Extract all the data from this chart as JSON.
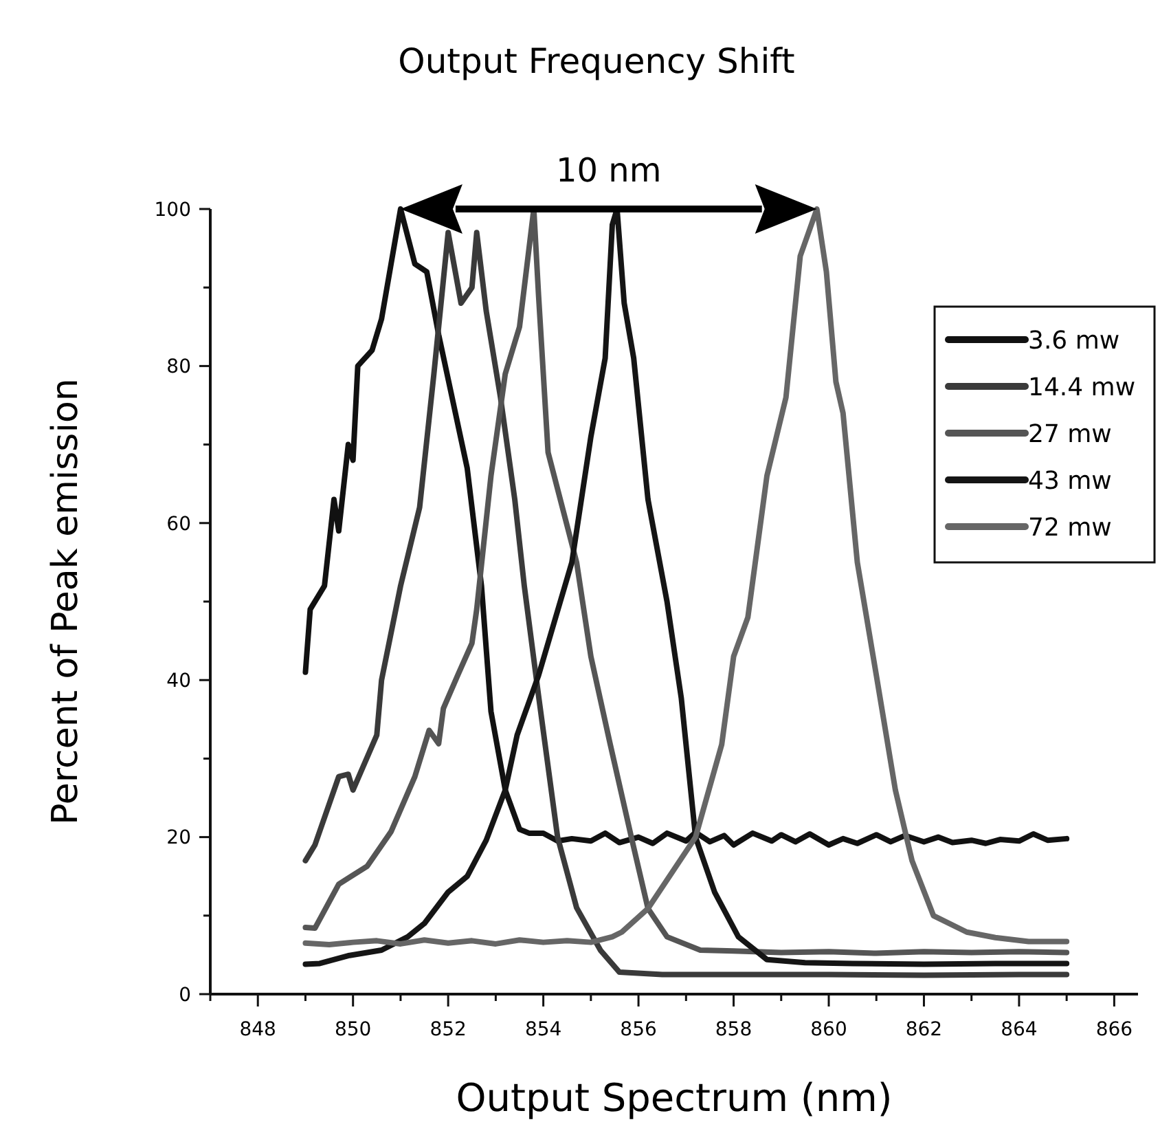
{
  "chart_data": {
    "type": "line",
    "title": "Output Frequency Shift",
    "xlabel": "Output Spectrum (nm)",
    "ylabel": "Percent of Peak emission",
    "xlim": [
      847,
      866.5
    ],
    "ylim": [
      0,
      100
    ],
    "xticks": [
      {
        "value": 847,
        "label": null
      },
      848,
      {
        "value": 849,
        "label": null
      },
      850,
      {
        "value": 851,
        "label": null
      },
      852,
      {
        "value": 853,
        "label": null
      },
      854,
      {
        "value": 855,
        "label": null
      },
      856,
      {
        "value": 857,
        "label": null
      },
      858,
      {
        "value": 859,
        "label": null
      },
      860,
      {
        "value": 861,
        "label": null
      },
      862,
      {
        "value": 863,
        "label": null
      },
      864,
      {
        "value": 865,
        "label": null
      },
      866
    ],
    "yticks": [
      0,
      {
        "value": 10,
        "label": null
      },
      20,
      {
        "value": 30,
        "label": null
      },
      40,
      {
        "value": 50,
        "label": null
      },
      60,
      {
        "value": 70,
        "label": null
      },
      80,
      {
        "value": 90,
        "label": null
      },
      100
    ],
    "grid": false,
    "legend": "top right",
    "marker": "none",
    "line_style": "solid",
    "annotations": [
      "10 nm"
    ],
    "series": [
      {
        "name": "3.6 mw",
        "color": "#111111",
        "x": [
          849,
          849.1,
          849.4,
          849.6,
          849.7,
          849.9,
          850,
          850.1,
          850.4,
          850.6,
          850.8,
          851,
          851.3,
          851.55,
          851.8,
          852.4,
          852.7,
          852.9,
          853.2,
          853.5,
          853.7,
          854,
          854.3,
          854.6,
          855,
          855.3,
          855.6,
          856,
          856.3,
          856.6,
          857,
          857.2,
          857.5,
          857.8,
          858,
          858.4,
          858.8,
          859,
          859.3,
          859.6,
          860,
          860.3,
          860.6,
          861,
          861.3,
          861.6,
          862,
          862.3,
          862.6,
          863,
          863.3,
          863.6,
          864,
          864.3,
          864.6,
          865
        ],
        "values": [
          41,
          49,
          52,
          63,
          59,
          70,
          68,
          80,
          82,
          86,
          93,
          100,
          93,
          92,
          84,
          67,
          52,
          36,
          26,
          21,
          20.5,
          20.5,
          19.5,
          19.8,
          19.5,
          20.5,
          19.3,
          20,
          19.2,
          20.5,
          19.5,
          20.6,
          19.4,
          20.2,
          19,
          20.5,
          19.5,
          20.3,
          19.4,
          20.4,
          19,
          19.8,
          19.2,
          20.3,
          19.4,
          20.2,
          19.4,
          20,
          19.3,
          19.6,
          19.2,
          19.7,
          19.5,
          20.4,
          19.6,
          19.8
        ]
      },
      {
        "name": "14.4 mw",
        "color": "#3a3a3a",
        "x": [
          849,
          849.2,
          849.7,
          849.9,
          850,
          850.5,
          850.6,
          851,
          851.4,
          851.7,
          851.9,
          852,
          852.27,
          852.5,
          852.6,
          852.8,
          853.1,
          853.4,
          853.6,
          853.9,
          854.3,
          854.7,
          855.2,
          855.6,
          856.5,
          858,
          860,
          862,
          864,
          865
        ],
        "values": [
          17,
          19,
          27.7,
          28,
          26,
          33,
          40,
          52,
          62,
          79,
          91,
          97,
          88,
          90,
          97,
          87,
          76,
          63,
          52,
          38,
          20,
          11,
          5.6,
          2.8,
          2.5,
          2.5,
          2.5,
          2.4,
          2.5,
          2.5
        ]
      },
      {
        "name": "27 mw",
        "color": "#555555",
        "x": [
          849,
          849.2,
          849.7,
          850.3,
          850.8,
          851.3,
          851.6,
          851.8,
          851.9,
          852.2,
          852.5,
          852.6,
          852.9,
          853.2,
          853.5,
          853.8,
          853.9,
          854.1,
          854.4,
          854.7,
          855,
          855.4,
          855.85,
          856.2,
          856.6,
          857.3,
          858,
          859,
          860,
          861,
          862,
          863,
          864,
          865
        ],
        "values": [
          8.5,
          8.4,
          14,
          16.3,
          20.7,
          27.7,
          33.6,
          31.9,
          36.4,
          40.6,
          44.7,
          49,
          66,
          79,
          85,
          100,
          89,
          69,
          62,
          55,
          43,
          32,
          20,
          10.9,
          7.3,
          5.6,
          5.5,
          5.3,
          5.4,
          5.2,
          5.4,
          5.3,
          5.4,
          5.3
        ]
      },
      {
        "name": "43 mw",
        "color": "#151515",
        "x": [
          849,
          849.3,
          849.9,
          850.6,
          851.15,
          851.5,
          852,
          852.4,
          852.8,
          853.2,
          853.45,
          853.9,
          854.6,
          855,
          855.3,
          855.45,
          855.55,
          855.7,
          855.9,
          856.2,
          856.6,
          856.9,
          857.2,
          857.6,
          858.1,
          858.7,
          859.5,
          860.5,
          862,
          863.5,
          865
        ],
        "values": [
          3.8,
          3.9,
          4.9,
          5.6,
          7.3,
          9,
          13,
          15,
          19.6,
          26,
          33,
          40.6,
          55,
          71,
          81,
          98,
          100,
          88,
          81,
          63,
          50,
          37.7,
          20,
          13,
          7.3,
          4.4,
          4,
          3.9,
          3.8,
          3.9,
          3.9
        ]
      },
      {
        "name": "72 mw",
        "color": "#666666",
        "x": [
          849,
          849.5,
          850,
          850.5,
          851,
          851.5,
          852,
          852.5,
          853,
          853.5,
          854,
          854.5,
          855,
          855.45,
          855.65,
          856.2,
          857.2,
          857.75,
          858,
          858.3,
          858.7,
          859.1,
          859.4,
          859.75,
          859.95,
          860.15,
          860.3,
          860.6,
          861,
          861.4,
          861.75,
          862.2,
          862.9,
          863.5,
          864.2,
          865
        ],
        "values": [
          6.5,
          6.3,
          6.6,
          6.8,
          6.4,
          6.9,
          6.5,
          6.8,
          6.4,
          6.9,
          6.6,
          6.8,
          6.6,
          7.3,
          7.9,
          10.9,
          20,
          31.8,
          43,
          48,
          66,
          76,
          94,
          100,
          92,
          78,
          74,
          55,
          40.6,
          26,
          17,
          10,
          7.9,
          7.2,
          6.7,
          6.7
        ]
      }
    ]
  }
}
